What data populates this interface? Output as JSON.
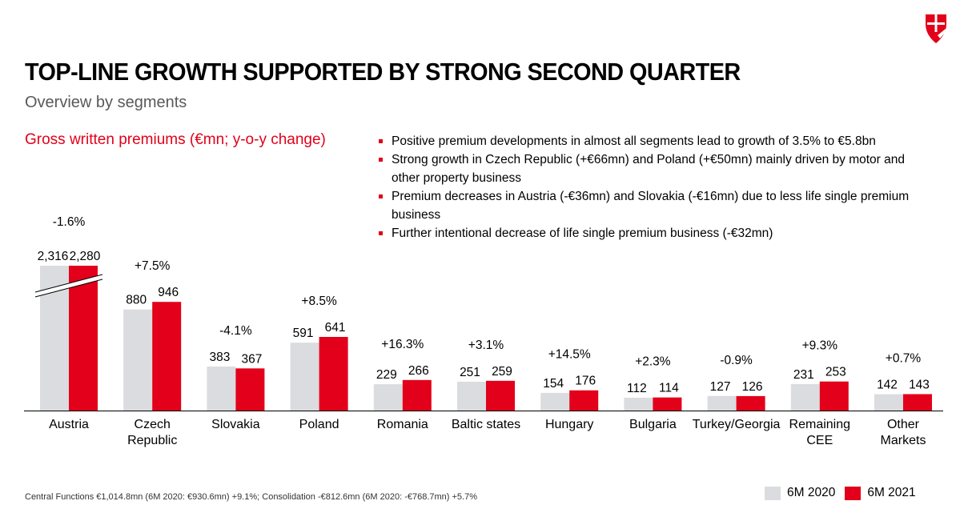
{
  "header": {
    "title": "TOP-LINE GROWTH SUPPORTED BY STRONG SECOND QUARTER",
    "subtitle": "Overview by segments"
  },
  "colors": {
    "accent": "#e2001a",
    "grey": "#dadcdf"
  },
  "icons": {
    "logo": "shield-logo-icon"
  },
  "bullets": [
    "Positive premium developments in almost all segments lead to growth of 3.5% to €5.8bn",
    "Strong growth in Czech Republic (+€66mn) and Poland (+€50mn) mainly driven by motor and other property business",
    "Premium decreases in Austria (-€36mn) and Slovakia (-€16mn) due to less life single premium business",
    "Further intentional decrease of life single premium business (-€32mn)"
  ],
  "footnote": "Central Functions €1,014.8mn (6M 2020: €930.6mn) +9.1%; Consolidation -€812.6mn (6M 2020: -€768.7mn) +5.7%",
  "chart_data": {
    "type": "bar",
    "title": "Gross written premiums (€mn; y-o-y change)",
    "axis_break": "Austria",
    "categories": [
      "Austria",
      "Czech Republic",
      "Slovakia",
      "Poland",
      "Romania",
      "Baltic states",
      "Hungary",
      "Bulgaria",
      "Turkey/Georgia",
      "Remaining CEE",
      "Other Markets"
    ],
    "category_lines": [
      [
        "Austria"
      ],
      [
        "Czech",
        "Republic"
      ],
      [
        "Slovakia"
      ],
      [
        "Poland"
      ],
      [
        "Romania"
      ],
      [
        "Baltic states"
      ],
      [
        "Hungary"
      ],
      [
        "Bulgaria"
      ],
      [
        "Turkey/Georgia"
      ],
      [
        "Remaining",
        "CEE"
      ],
      [
        "Other",
        "Markets"
      ]
    ],
    "series": [
      {
        "name": "6M 2020",
        "color": "#dadcdf",
        "values": [
          2316,
          880,
          383,
          591,
          229,
          251,
          154,
          112,
          127,
          231,
          142
        ],
        "labels": [
          "2,316",
          "880",
          "383",
          "591",
          "229",
          "251",
          "154",
          "112",
          "127",
          "231",
          "142"
        ]
      },
      {
        "name": "6M 2021",
        "color": "#e2001a",
        "values": [
          2280,
          946,
          367,
          641,
          266,
          259,
          176,
          114,
          126,
          253,
          143
        ],
        "labels": [
          "2,280",
          "946",
          "367",
          "641",
          "266",
          "259",
          "176",
          "114",
          "126",
          "253",
          "143"
        ]
      }
    ],
    "changes": [
      "-1.6%",
      "+7.5%",
      "-4.1%",
      "+8.5%",
      "+16.3%",
      "+3.1%",
      "+14.5%",
      "+2.3%",
      "-0.9%",
      "+9.3%",
      "+0.7%"
    ]
  }
}
